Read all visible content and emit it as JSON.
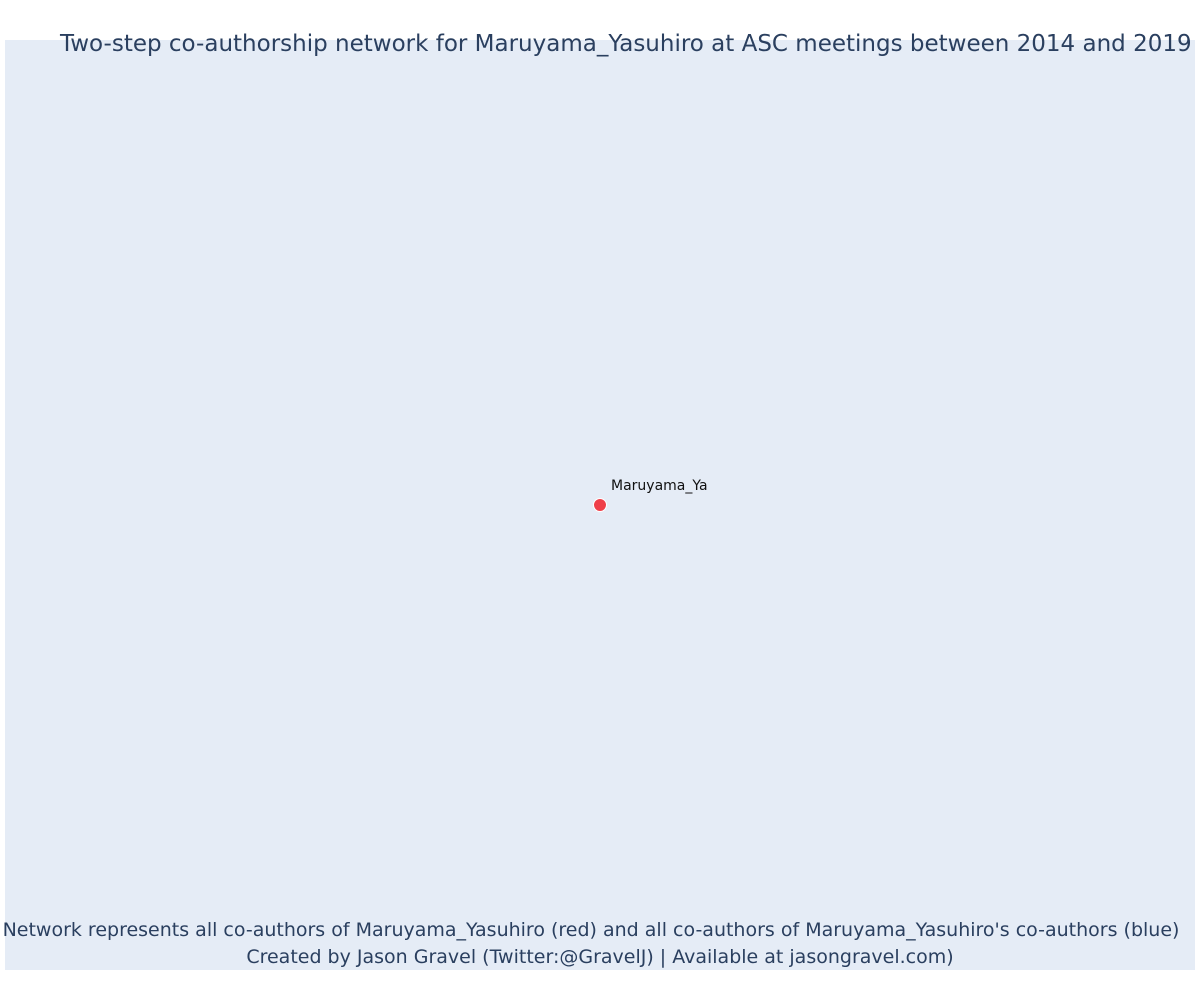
{
  "title": "Two-step co-authorship network for Maruyama_Yasuhiro at ASC meetings between 2014 and 2019",
  "nodes": [
    {
      "label": "Maruyama_Ya",
      "role": "ego",
      "color": "#ef3f49"
    }
  ],
  "caption": {
    "line1": "Network represents all co-authors of Maruyama_Yasuhiro (red) and all co-authors of Maruyama_Yasuhiro's co-authors (blue)",
    "line2": "Created by Jason Gravel (Twitter:@GravelJ) | Available at jasongravel.com)"
  },
  "colors": {
    "plot_background": "#e5ecf6",
    "title_text": "#2a3f5f",
    "ego_node": "#ef3f49"
  }
}
